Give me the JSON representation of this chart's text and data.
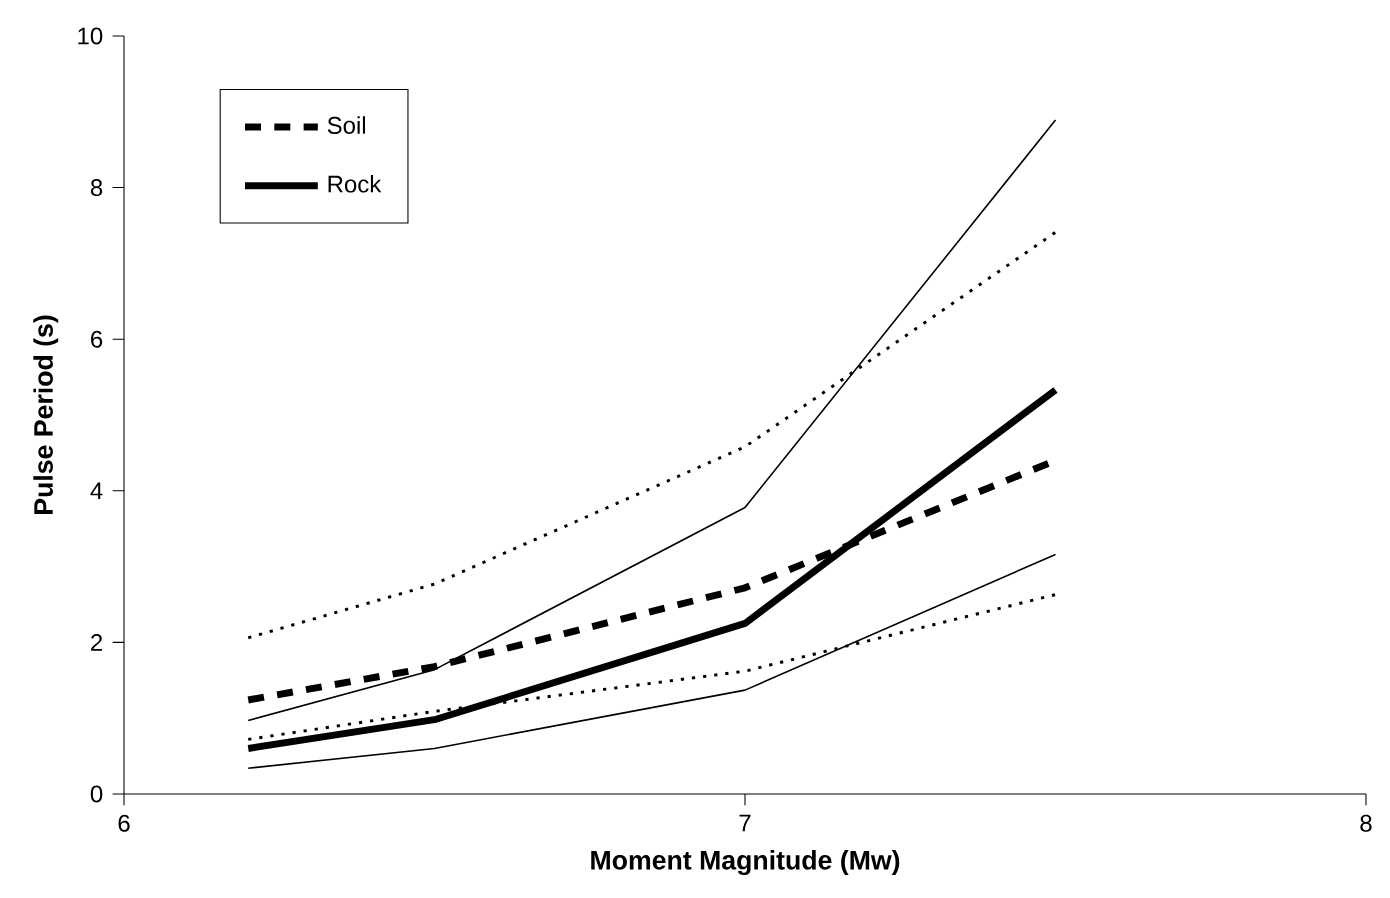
{
  "chart_data": {
    "type": "line",
    "xlabel": "Moment Magnitude (Mw)",
    "ylabel": "Pulse Period (s)",
    "xlim": [
      6,
      8
    ],
    "xticks": [
      6,
      7,
      8
    ],
    "ylim": [
      0,
      10
    ],
    "yticks": [
      0,
      2,
      4,
      6,
      8,
      10
    ],
    "grid": false,
    "legend": "top left",
    "marker": "none",
    "series": [
      {
        "name": "Soil",
        "color": "#000000",
        "line_style": "dashed",
        "x": [
          6.2,
          6.5,
          7,
          7.5
        ],
        "values": [
          1.24,
          1.68,
          2.72,
          4.4
        ]
      },
      {
        "name": "Rock",
        "color": "#000000",
        "line_style": "solid",
        "x": [
          6.2,
          6.5,
          7,
          7.5
        ],
        "values": [
          0.6,
          0.98,
          2.25,
          5.33
        ]
      },
      {
        "color": "#000000",
        "line_style": "dotted",
        "x": [
          6.2,
          6.5,
          7,
          7.5
        ],
        "values": [
          2.06,
          2.77,
          4.58,
          7.41
        ]
      },
      {
        "color": "#000000",
        "line_style": "dotted",
        "x": [
          6.2,
          6.5,
          7,
          7.5
        ],
        "values": [
          0.72,
          1.09,
          1.62,
          2.63
        ]
      },
      {
        "color": "#000000",
        "line_style": "solid",
        "x": [
          6.2,
          6.5,
          7,
          7.5
        ],
        "values": [
          0.97,
          1.64,
          3.78,
          8.89
        ]
      },
      {
        "color": "#000000",
        "line_style": "solid",
        "x": [
          6.2,
          6.5,
          7,
          7.5
        ],
        "values": [
          0.34,
          0.6,
          1.37,
          3.16
        ]
      }
    ]
  }
}
